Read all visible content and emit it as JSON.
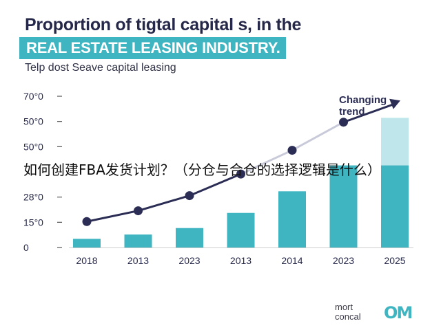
{
  "header": {
    "title_line1": "Proportion of tigtal capital s, in the",
    "title_line2": "REAL ESTATE LEASING INDUSTRY.",
    "subtitle": "Telp dost Seave capital leasing"
  },
  "overlay_text": "如何创建FBA发货计划？（分仓与合仓的选择逻辑是什么）",
  "brand": {
    "name_line1": "mort",
    "name_line2": "concal",
    "logo": "OM"
  },
  "colors": {
    "bar": "#3fb5c2",
    "bar_light": "#bfe6ea",
    "trend": "#2b2d55",
    "trend_light": "#c9cad9",
    "text": "#26284a"
  },
  "chart_data": {
    "type": "bar",
    "categories": [
      "2018",
      "2013",
      "2023",
      "2013",
      "2014",
      "2023",
      "2025"
    ],
    "y_tick_labels": [
      "0",
      "15°0",
      "28°0",
      "",
      "50°0",
      "50°0",
      "70°0"
    ],
    "values": [
      4,
      6,
      9,
      16,
      26,
      38,
      38
    ],
    "forecast_extension": [
      0,
      0,
      0,
      0,
      0,
      0,
      22
    ],
    "trend_line": [
      12,
      17,
      24,
      34,
      45,
      58
    ],
    "trend_arrow_target": 68,
    "trend_label_line1": "Changing",
    "trend_label_line2": "trend",
    "ylim": [
      0,
      70
    ],
    "grid": false
  }
}
